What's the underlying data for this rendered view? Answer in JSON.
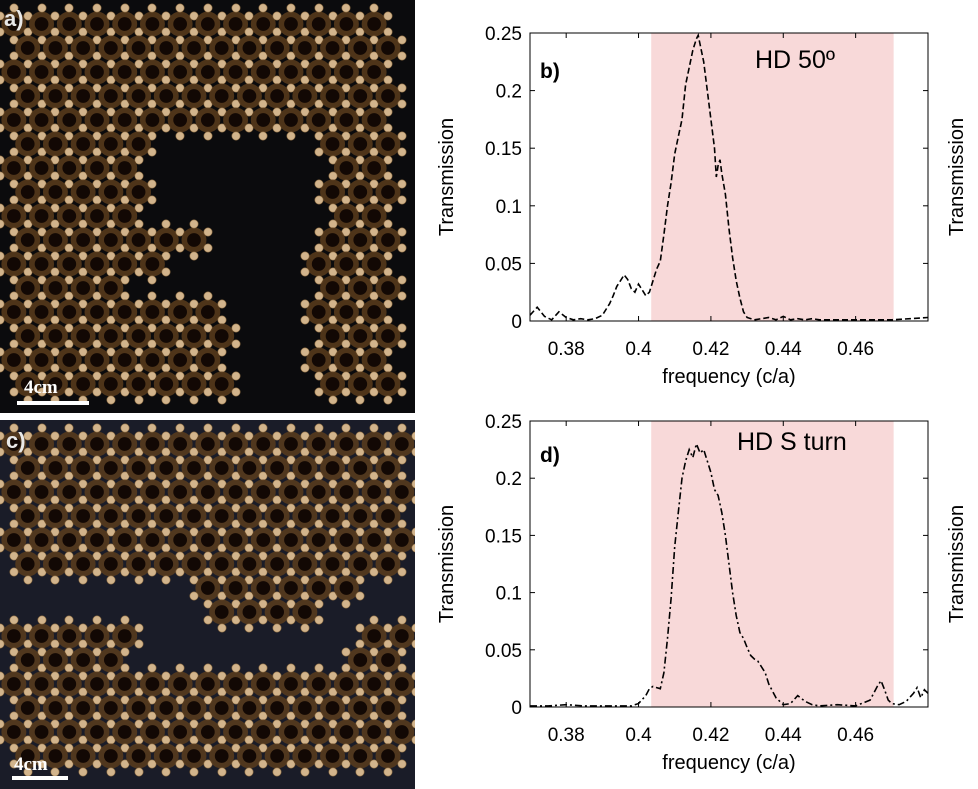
{
  "panels": {
    "a": {
      "label": "a)",
      "scale_bar": "4cm"
    },
    "c": {
      "label": "c)",
      "scale_bar": "4cm"
    }
  },
  "colors": {
    "bandgap_fill": "#f8d9d9",
    "photo_background": "#0b0b0d",
    "rod_color": "#d2b48c",
    "line_color": "#000000"
  },
  "chart_data": [
    {
      "type": "line",
      "panel": "b)",
      "title": "HD  50º",
      "xlabel": "frequency (c/a)",
      "ylabel": "Transmission",
      "ylabel_right": "Transmission",
      "xlim": [
        0.37,
        0.48
      ],
      "ylim": [
        0,
        0.25
      ],
      "xticks": [
        0.38,
        0.4,
        0.42,
        0.44,
        0.46
      ],
      "xtick_labels": [
        "0.38",
        "0.4",
        "0.42",
        "0.44",
        "0.46"
      ],
      "yticks": [
        0,
        0.05,
        0.1,
        0.15,
        0.2,
        0.25
      ],
      "ytick_labels": [
        "0",
        "0.05",
        "0.1",
        "0.15",
        "0.2",
        "0.25"
      ],
      "shaded_band": [
        0.4035,
        0.4705
      ],
      "line_style": "dashed",
      "grid": false,
      "series": [
        {
          "name": "HD 50°",
          "x": [
            0.37,
            0.372,
            0.374,
            0.376,
            0.378,
            0.38,
            0.382,
            0.384,
            0.386,
            0.388,
            0.39,
            0.392,
            0.393,
            0.394,
            0.395,
            0.396,
            0.397,
            0.398,
            0.399,
            0.4,
            0.401,
            0.402,
            0.403,
            0.404,
            0.405,
            0.406,
            0.407,
            0.408,
            0.409,
            0.41,
            0.411,
            0.412,
            0.413,
            0.414,
            0.415,
            0.416,
            0.4165,
            0.417,
            0.418,
            0.419,
            0.42,
            0.421,
            0.4215,
            0.422,
            0.4225,
            0.423,
            0.424,
            0.425,
            0.426,
            0.427,
            0.428,
            0.429,
            0.43,
            0.432,
            0.434,
            0.436,
            0.438,
            0.44,
            0.442,
            0.444,
            0.446,
            0.448,
            0.45,
            0.455,
            0.46,
            0.465,
            0.47,
            0.475,
            0.48
          ],
          "y": [
            0.005,
            0.012,
            0.004,
            0.001,
            0.008,
            0.003,
            0.001,
            0.002,
            0.001,
            0.002,
            0.005,
            0.015,
            0.022,
            0.03,
            0.035,
            0.04,
            0.036,
            0.028,
            0.025,
            0.032,
            0.027,
            0.022,
            0.025,
            0.035,
            0.045,
            0.052,
            0.075,
            0.1,
            0.12,
            0.145,
            0.16,
            0.175,
            0.205,
            0.22,
            0.235,
            0.245,
            0.248,
            0.24,
            0.225,
            0.2,
            0.175,
            0.15,
            0.125,
            0.135,
            0.14,
            0.128,
            0.11,
            0.08,
            0.055,
            0.035,
            0.02,
            0.008,
            0.003,
            0.001,
            0.002,
            0.003,
            0.001,
            0.004,
            0.001,
            0.002,
            0.001,
            0.002,
            0.001,
            0.001,
            0.001,
            0.001,
            0.001,
            0.002,
            0.003
          ]
        }
      ]
    },
    {
      "type": "line",
      "panel": "d)",
      "title": "HD  S turn",
      "xlabel": "frequency (c/a)",
      "ylabel": "Transmission",
      "ylabel_right": "Transmission",
      "xlim": [
        0.37,
        0.48
      ],
      "ylim": [
        0,
        0.25
      ],
      "xticks": [
        0.38,
        0.4,
        0.42,
        0.44,
        0.46
      ],
      "xtick_labels": [
        "0.38",
        "0.4",
        "0.42",
        "0.44",
        "0.46"
      ],
      "yticks": [
        0,
        0.05,
        0.1,
        0.15,
        0.2,
        0.25
      ],
      "ytick_labels": [
        "0",
        "0.05",
        "0.1",
        "0.15",
        "0.2",
        "0.25"
      ],
      "shaded_band": [
        0.4035,
        0.4705
      ],
      "line_style": "dashdot",
      "grid": false,
      "series": [
        {
          "name": "HD S turn",
          "x": [
            0.37,
            0.375,
            0.38,
            0.385,
            0.39,
            0.395,
            0.398,
            0.4,
            0.402,
            0.403,
            0.404,
            0.405,
            0.406,
            0.407,
            0.408,
            0.409,
            0.41,
            0.411,
            0.412,
            0.413,
            0.414,
            0.415,
            0.416,
            0.417,
            0.418,
            0.419,
            0.42,
            0.421,
            0.422,
            0.423,
            0.424,
            0.425,
            0.426,
            0.427,
            0.428,
            0.429,
            0.43,
            0.431,
            0.432,
            0.433,
            0.434,
            0.435,
            0.436,
            0.438,
            0.44,
            0.442,
            0.444,
            0.446,
            0.448,
            0.45,
            0.455,
            0.46,
            0.464,
            0.466,
            0.467,
            0.468,
            0.469,
            0.47,
            0.472,
            0.474,
            0.476,
            0.477,
            0.478,
            0.479,
            0.48
          ],
          "y": [
            0.001,
            0.001,
            0.002,
            0.001,
            0.001,
            0.001,
            0.001,
            0.003,
            0.01,
            0.016,
            0.018,
            0.017,
            0.016,
            0.03,
            0.06,
            0.095,
            0.14,
            0.17,
            0.2,
            0.215,
            0.225,
            0.218,
            0.23,
            0.222,
            0.225,
            0.215,
            0.205,
            0.19,
            0.185,
            0.17,
            0.15,
            0.125,
            0.1,
            0.08,
            0.065,
            0.06,
            0.052,
            0.045,
            0.042,
            0.04,
            0.035,
            0.03,
            0.02,
            0.008,
            0.002,
            0.003,
            0.01,
            0.005,
            0.002,
            0.001,
            0.002,
            0.001,
            0.006,
            0.018,
            0.023,
            0.015,
            0.006,
            0.003,
            0.002,
            0.005,
            0.012,
            0.017,
            0.008,
            0.015,
            0.012
          ]
        }
      ]
    }
  ]
}
